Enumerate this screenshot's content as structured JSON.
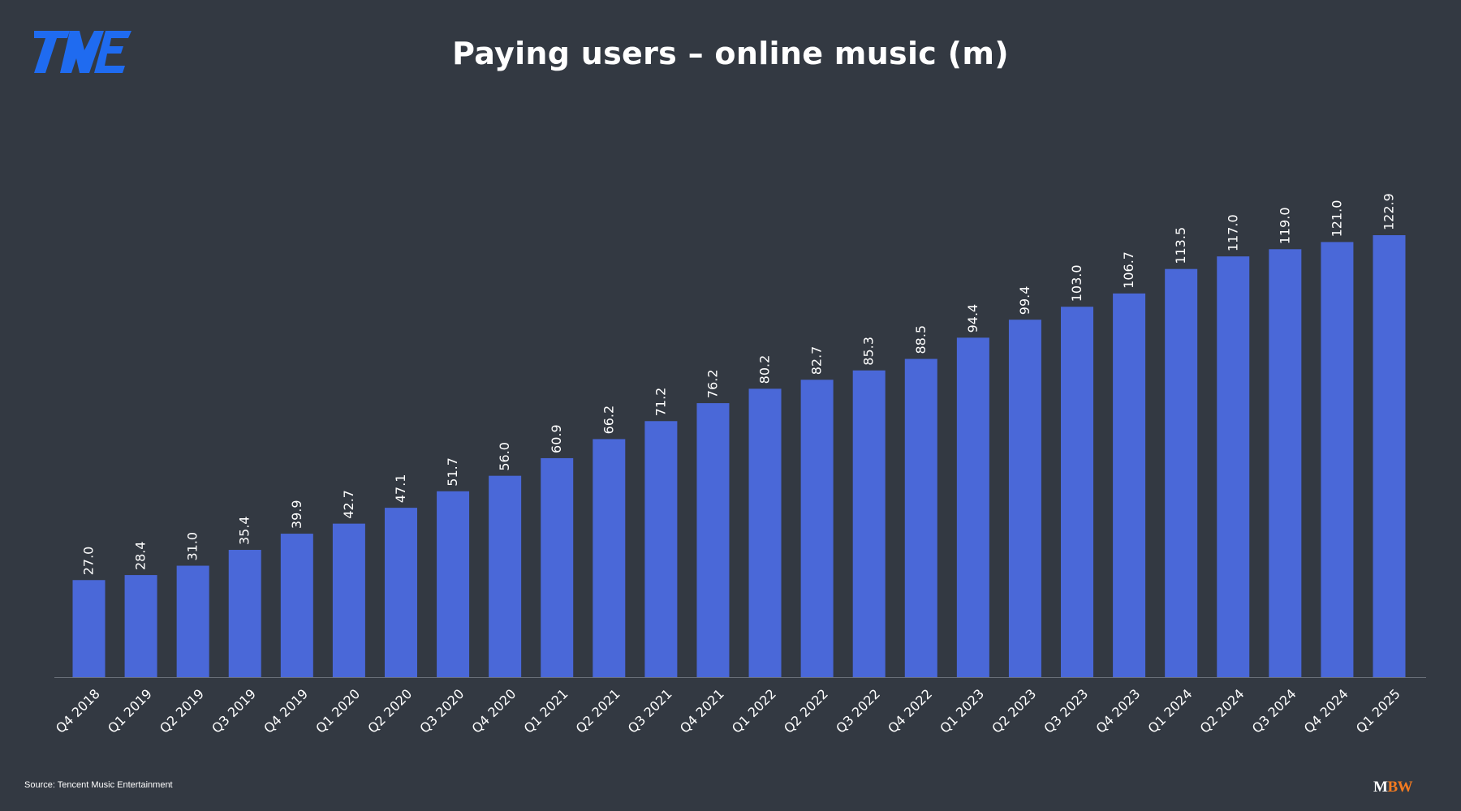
{
  "title": "Paying users – online music (m)",
  "source": "Source: Tencent Music Entertainment",
  "logos": {
    "tme_icon": "tme-logo",
    "mbw_m": "M",
    "mbw_bw": "BW"
  },
  "colors": {
    "background": "#333942",
    "bar": "#4a68d8",
    "tme_logo": "#1f6bf0",
    "mbw_accent": "#f47b20",
    "text": "#ffffff"
  },
  "chart_data": {
    "type": "bar",
    "title": "Paying users – online music (m)",
    "categories": [
      "Q4 2018",
      "Q1 2019",
      "Q2 2019",
      "Q3 2019",
      "Q4 2019",
      "Q1 2020",
      "Q2 2020",
      "Q3 2020",
      "Q4 2020",
      "Q1 2021",
      "Q2 2021",
      "Q3 2021",
      "Q4 2021",
      "Q1 2022",
      "Q2 2022",
      "Q3 2022",
      "Q4 2022",
      "Q1 2023",
      "Q2 2023",
      "Q3 2023",
      "Q4 2023",
      "Q1 2024",
      "Q2 2024",
      "Q3 2024",
      "Q4 2024",
      "Q1 2025"
    ],
    "values": [
      27.0,
      28.4,
      31.0,
      35.4,
      39.9,
      42.7,
      47.1,
      51.7,
      56.0,
      60.9,
      66.2,
      71.2,
      76.2,
      80.2,
      82.7,
      85.3,
      88.5,
      94.4,
      99.4,
      103.0,
      106.7,
      113.5,
      117.0,
      119.0,
      121.0,
      122.9
    ],
    "labels": [
      "27.0",
      "28.4",
      "31.0",
      "35.4",
      "39.9",
      "42.7",
      "47.1",
      "51.7",
      "56.0",
      "60.9",
      "66.2",
      "71.2",
      "76.2",
      "80.2",
      "82.7",
      "85.3",
      "88.5",
      "94.4",
      "99.4",
      "103.0",
      "106.7",
      "113.5",
      "117.0",
      "119.0",
      "121.0",
      "122.9"
    ],
    "xlabel": "",
    "ylabel": "",
    "ylim": [
      0,
      125
    ],
    "grid": false,
    "legend": "none"
  }
}
